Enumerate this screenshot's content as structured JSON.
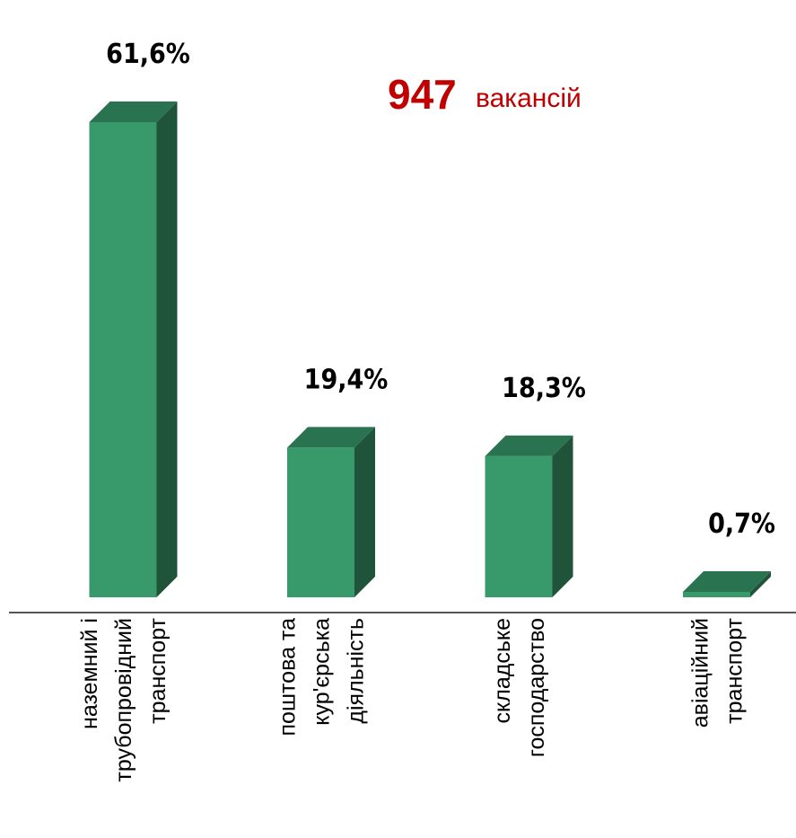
{
  "chart_data": {
    "type": "bar3d",
    "annotation": {
      "number": "947",
      "text": "вакансій",
      "color": "#c00000"
    },
    "categories": [
      "наземний і трубопровідний транспорт",
      "поштова та кур'єрська діяльність",
      "складське господарство",
      "авіаційний транспорт"
    ],
    "values": [
      61.6,
      19.4,
      18.3,
      0.7
    ],
    "value_labels": [
      "61,6%",
      "19,4%",
      "18,3%",
      "0,7%"
    ],
    "color": "#38996a"
  }
}
